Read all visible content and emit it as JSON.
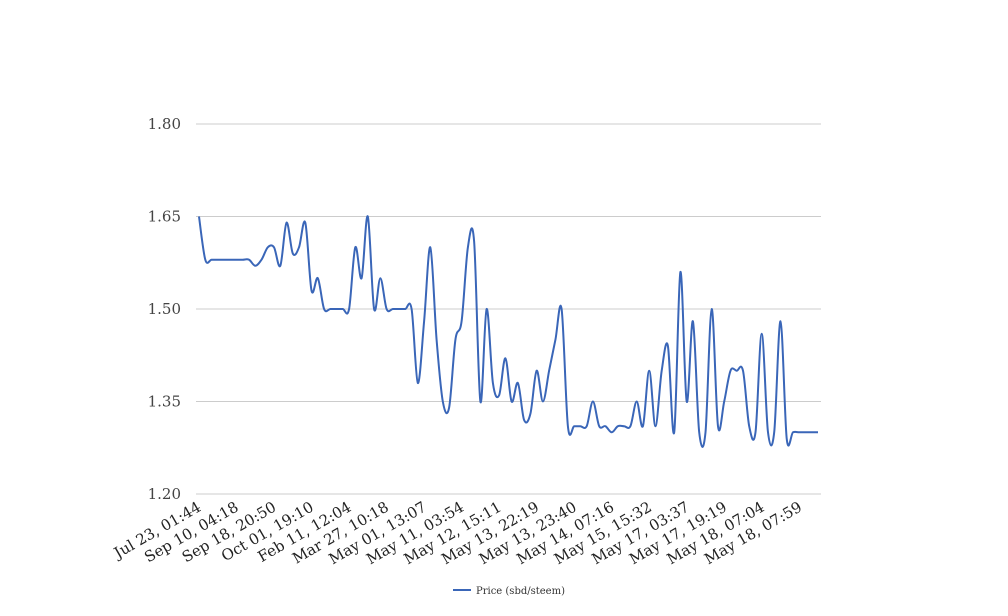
{
  "chart_data": {
    "type": "line",
    "title": "",
    "xlabel": "",
    "ylabel": "",
    "ylim": [
      1.2,
      1.8
    ],
    "yticks": [
      "1.80",
      "1.65",
      "1.50",
      "1.35",
      "1.20"
    ],
    "ytick_values": [
      1.8,
      1.65,
      1.5,
      1.35,
      1.2
    ],
    "xtick_labels": [
      "Jul 23, 01:44",
      "Sep 10, 04:18",
      "Sep 18, 20:50",
      "Oct 01, 19:10",
      "Feb 11, 12:04",
      "Mar 27, 10:18",
      "May 01, 13:07",
      "May 11, 03:54",
      "May 12, 15:11",
      "May 13, 22:19",
      "May 13, 23:40",
      "May 14, 07:16",
      "May 15, 15:32",
      "May 17, 03:37",
      "May 17, 19:19",
      "May 18, 07:04",
      "May 18, 07:59"
    ],
    "grid": true,
    "legend_position": "bottom",
    "series": [
      {
        "name": "Price (sbd/steem)",
        "color": "#3a66b8",
        "values": [
          1.65,
          1.58,
          1.58,
          1.58,
          1.58,
          1.58,
          1.58,
          1.58,
          1.58,
          1.57,
          1.58,
          1.6,
          1.6,
          1.57,
          1.64,
          1.59,
          1.6,
          1.64,
          1.53,
          1.55,
          1.5,
          1.5,
          1.5,
          1.5,
          1.5,
          1.6,
          1.55,
          1.65,
          1.5,
          1.55,
          1.5,
          1.5,
          1.5,
          1.5,
          1.5,
          1.38,
          1.48,
          1.6,
          1.45,
          1.35,
          1.34,
          1.45,
          1.48,
          1.6,
          1.61,
          1.35,
          1.5,
          1.38,
          1.36,
          1.42,
          1.35,
          1.38,
          1.32,
          1.33,
          1.4,
          1.35,
          1.4,
          1.45,
          1.5,
          1.31,
          1.31,
          1.31,
          1.31,
          1.35,
          1.31,
          1.31,
          1.3,
          1.31,
          1.31,
          1.31,
          1.35,
          1.31,
          1.4,
          1.31,
          1.4,
          1.44,
          1.3,
          1.56,
          1.35,
          1.48,
          1.3,
          1.3,
          1.5,
          1.31,
          1.35,
          1.4,
          1.4,
          1.4,
          1.31,
          1.3,
          1.46,
          1.3,
          1.3,
          1.48,
          1.29,
          1.3,
          1.3,
          1.3,
          1.3,
          1.3
        ]
      }
    ]
  }
}
